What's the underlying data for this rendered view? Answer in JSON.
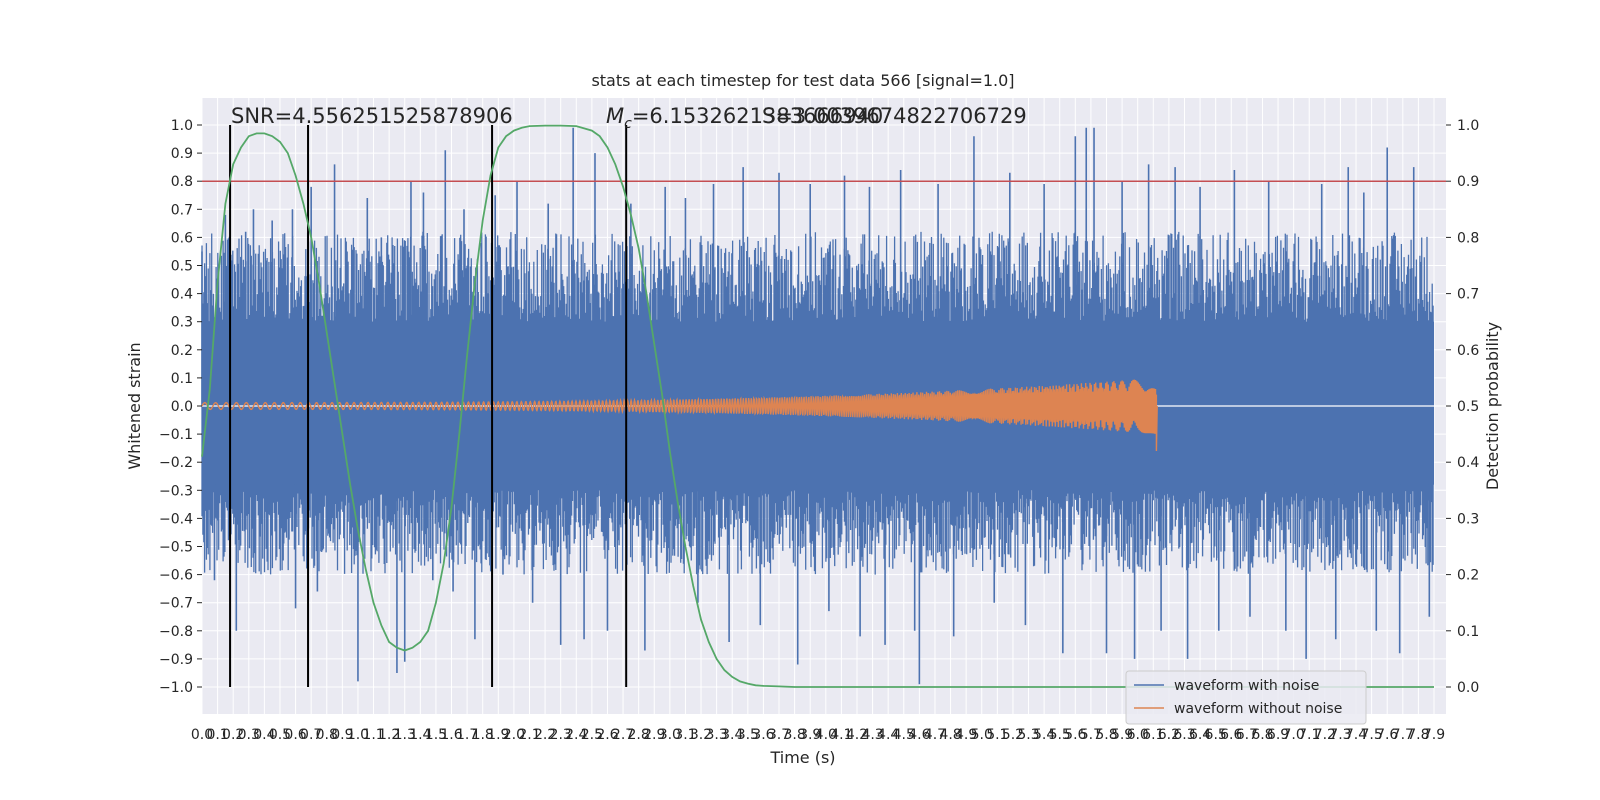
{
  "chart_data": {
    "type": "line",
    "title": "stats at each timestep for test data 566 [signal=1.0]",
    "xlabel": "Time (s)",
    "ylabel": "Whitened strain",
    "ylabel_right": "Detection probability",
    "xlim": [
      0.0,
      7.9
    ],
    "ylim": [
      -1.0,
      1.0
    ],
    "ylim_right": [
      0.0,
      1.0
    ],
    "x_ticks": [
      "0.0",
      "0.1",
      "0.2",
      "0.3",
      "0.4",
      "0.5",
      "0.6",
      "0.7",
      "0.8",
      "0.9",
      "1.0",
      "1.1",
      "1.2",
      "1.3",
      "1.4",
      "1.5",
      "1.6",
      "1.7",
      "1.8",
      "1.9",
      "2.0",
      "2.1",
      "2.2",
      "2.3",
      "2.4",
      "2.5",
      "2.6",
      "2.7",
      "2.8",
      "2.9",
      "3.0",
      "3.1",
      "3.2",
      "3.3",
      "3.4",
      "3.5",
      "3.6",
      "3.7",
      "3.8",
      "3.9",
      "4.0",
      "4.1",
      "4.2",
      "4.3",
      "4.4",
      "4.5",
      "4.6",
      "4.7",
      "4.8",
      "4.9",
      "5.0",
      "5.1",
      "5.2",
      "5.3",
      "5.4",
      "5.5",
      "5.6",
      "5.7",
      "5.8",
      "5.9",
      "6.0",
      "6.1",
      "6.2",
      "6.3",
      "6.4",
      "6.5",
      "6.6",
      "6.7",
      "6.8",
      "6.9",
      "7.0",
      "7.1",
      "7.2",
      "7.3",
      "7.4",
      "7.5",
      "7.6",
      "7.7",
      "7.8",
      "7.9"
    ],
    "y_ticks": [
      "1.0",
      "0.9",
      "0.8",
      "0.7",
      "0.6",
      "0.5",
      "0.4",
      "0.3",
      "0.2",
      "0.1",
      "0.0",
      "−0.1",
      "−0.2",
      "−0.3",
      "−0.4",
      "−0.5",
      "−0.6",
      "−0.7",
      "−0.8",
      "−0.9",
      "−1.0"
    ],
    "y_ticks_right": [
      "1.0",
      "0.9",
      "0.8",
      "0.7",
      "0.6",
      "0.5",
      "0.4",
      "0.3",
      "0.2",
      "0.1",
      "0.0"
    ],
    "threshold": {
      "value": 0.9,
      "axis": "right",
      "color": "#c44e52"
    },
    "vertical_markers": [
      0.18,
      0.68,
      1.86,
      2.72
    ],
    "annotations": {
      "snr": "SNR=4.556251525878906",
      "mc": "=6.1532621383666940",
      "mc_symbol": "M",
      "mc_sub": "c",
      "overlap": "S=3.0039674822706729"
    },
    "series": [
      {
        "name": "waveform with noise",
        "color": "#4c72b0",
        "spikes": [
          {
            "x": 0.0,
            "y": 0.55
          },
          {
            "x": 0.08,
            "y": -0.62
          },
          {
            "x": 0.15,
            "y": 0.68
          },
          {
            "x": 0.22,
            "y": -0.8
          },
          {
            "x": 0.28,
            "y": 0.62
          },
          {
            "x": 0.33,
            "y": 0.7
          },
          {
            "x": 0.45,
            "y": 0.66
          },
          {
            "x": 0.52,
            "y": -0.55
          },
          {
            "x": 0.58,
            "y": 0.7
          },
          {
            "x": 0.6,
            "y": -0.72
          },
          {
            "x": 0.7,
            "y": 0.78
          },
          {
            "x": 0.74,
            "y": -0.66
          },
          {
            "x": 0.85,
            "y": 0.86
          },
          {
            "x": 0.93,
            "y": 0.55
          },
          {
            "x": 1.0,
            "y": -0.98
          },
          {
            "x": 1.06,
            "y": 0.74
          },
          {
            "x": 1.15,
            "y": 0.6
          },
          {
            "x": 1.25,
            "y": -0.95
          },
          {
            "x": 1.3,
            "y": -0.91
          },
          {
            "x": 1.34,
            "y": 0.8
          },
          {
            "x": 1.42,
            "y": 0.76
          },
          {
            "x": 1.48,
            "y": -0.62
          },
          {
            "x": 1.56,
            "y": 0.91
          },
          {
            "x": 1.61,
            "y": -0.66
          },
          {
            "x": 1.68,
            "y": 0.7
          },
          {
            "x": 1.75,
            "y": -0.83
          },
          {
            "x": 1.88,
            "y": 0.75
          },
          {
            "x": 1.93,
            "y": -0.6
          },
          {
            "x": 2.02,
            "y": 0.8
          },
          {
            "x": 2.12,
            "y": -0.7
          },
          {
            "x": 2.22,
            "y": 0.72
          },
          {
            "x": 2.3,
            "y": -0.85
          },
          {
            "x": 2.38,
            "y": 0.99
          },
          {
            "x": 2.45,
            "y": -0.83
          },
          {
            "x": 2.52,
            "y": 0.9
          },
          {
            "x": 2.6,
            "y": -0.8
          },
          {
            "x": 2.75,
            "y": 0.72
          },
          {
            "x": 2.84,
            "y": -0.87
          },
          {
            "x": 2.97,
            "y": 0.78
          },
          {
            "x": 3.1,
            "y": 0.74
          },
          {
            "x": 3.18,
            "y": -0.7
          },
          {
            "x": 3.28,
            "y": 0.79
          },
          {
            "x": 3.38,
            "y": -0.84
          },
          {
            "x": 3.47,
            "y": 0.85
          },
          {
            "x": 3.58,
            "y": -0.78
          },
          {
            "x": 3.7,
            "y": 0.83
          },
          {
            "x": 3.82,
            "y": -0.92
          },
          {
            "x": 3.9,
            "y": 0.79
          },
          {
            "x": 4.02,
            "y": -0.73
          },
          {
            "x": 4.12,
            "y": 0.82
          },
          {
            "x": 4.22,
            "y": -0.82
          },
          {
            "x": 4.28,
            "y": 0.78
          },
          {
            "x": 4.38,
            "y": -0.85
          },
          {
            "x": 4.48,
            "y": 0.84
          },
          {
            "x": 4.57,
            "y": -0.8
          },
          {
            "x": 4.6,
            "y": -0.99
          },
          {
            "x": 4.72,
            "y": 0.79
          },
          {
            "x": 4.82,
            "y": -0.82
          },
          {
            "x": 4.95,
            "y": 0.96
          },
          {
            "x": 5.08,
            "y": -0.7
          },
          {
            "x": 5.18,
            "y": 0.83
          },
          {
            "x": 5.28,
            "y": -0.78
          },
          {
            "x": 5.4,
            "y": 0.79
          },
          {
            "x": 5.52,
            "y": -0.88
          },
          {
            "x": 5.6,
            "y": 0.96
          },
          {
            "x": 5.67,
            "y": 0.99
          },
          {
            "x": 5.72,
            "y": 0.99
          },
          {
            "x": 5.8,
            "y": -0.88
          },
          {
            "x": 5.9,
            "y": 0.8
          },
          {
            "x": 5.98,
            "y": -0.9
          },
          {
            "x": 6.07,
            "y": 0.86
          },
          {
            "x": 6.15,
            "y": -0.8
          },
          {
            "x": 6.24,
            "y": 0.85
          },
          {
            "x": 6.32,
            "y": -0.9
          },
          {
            "x": 6.4,
            "y": 0.78
          },
          {
            "x": 6.52,
            "y": -0.8
          },
          {
            "x": 6.62,
            "y": 0.84
          },
          {
            "x": 6.72,
            "y": -0.75
          },
          {
            "x": 6.84,
            "y": 0.8
          },
          {
            "x": 6.95,
            "y": -0.8
          },
          {
            "x": 7.08,
            "y": -0.9
          },
          {
            "x": 7.18,
            "y": 0.79
          },
          {
            "x": 7.27,
            "y": -0.83
          },
          {
            "x": 7.35,
            "y": 0.85
          },
          {
            "x": 7.45,
            "y": 0.76
          },
          {
            "x": 7.53,
            "y": -0.8
          },
          {
            "x": 7.6,
            "y": 0.92
          },
          {
            "x": 7.68,
            "y": -0.88
          },
          {
            "x": 7.77,
            "y": 0.85
          },
          {
            "x": 7.87,
            "y": -0.75
          }
        ]
      },
      {
        "name": "waveform without noise",
        "color": "#dd8452",
        "start": 0.0,
        "end": 6.12,
        "amp_start": 0.012,
        "amp_end": 0.1,
        "min_end": -0.16
      },
      {
        "name": "Detection probability",
        "axis": "right",
        "color": "#55a868",
        "x": [
          0.0,
          0.05,
          0.1,
          0.15,
          0.2,
          0.25,
          0.3,
          0.35,
          0.4,
          0.45,
          0.5,
          0.55,
          0.6,
          0.65,
          0.7,
          0.75,
          0.8,
          0.85,
          0.9,
          0.95,
          1.0,
          1.05,
          1.1,
          1.15,
          1.2,
          1.25,
          1.3,
          1.35,
          1.4,
          1.45,
          1.5,
          1.55,
          1.6,
          1.65,
          1.7,
          1.75,
          1.8,
          1.85,
          1.9,
          1.95,
          2.0,
          2.05,
          2.1,
          2.2,
          2.3,
          2.4,
          2.5,
          2.55,
          2.6,
          2.65,
          2.7,
          2.75,
          2.8,
          2.85,
          2.9,
          2.95,
          3.0,
          3.05,
          3.1,
          3.15,
          3.2,
          3.25,
          3.3,
          3.35,
          3.4,
          3.45,
          3.5,
          3.55,
          3.6,
          3.7,
          3.8,
          4.0,
          5.0,
          6.0,
          7.0,
          7.9
        ],
        "y": [
          0.41,
          0.53,
          0.72,
          0.86,
          0.93,
          0.96,
          0.98,
          0.985,
          0.985,
          0.98,
          0.97,
          0.95,
          0.91,
          0.86,
          0.8,
          0.72,
          0.63,
          0.54,
          0.45,
          0.36,
          0.28,
          0.21,
          0.15,
          0.11,
          0.08,
          0.07,
          0.065,
          0.07,
          0.08,
          0.1,
          0.15,
          0.22,
          0.32,
          0.45,
          0.59,
          0.72,
          0.83,
          0.91,
          0.96,
          0.98,
          0.99,
          0.995,
          0.998,
          0.999,
          0.999,
          0.998,
          0.99,
          0.98,
          0.96,
          0.93,
          0.89,
          0.84,
          0.78,
          0.7,
          0.61,
          0.52,
          0.42,
          0.33,
          0.25,
          0.18,
          0.12,
          0.08,
          0.05,
          0.03,
          0.018,
          0.01,
          0.006,
          0.003,
          0.002,
          0.001,
          0.0,
          0.0,
          0.0,
          0.0,
          0.0,
          0.0
        ]
      }
    ],
    "legend": {
      "placement": "lower-right",
      "entries": [
        "waveform with noise",
        "waveform without noise"
      ]
    },
    "grid": true
  }
}
